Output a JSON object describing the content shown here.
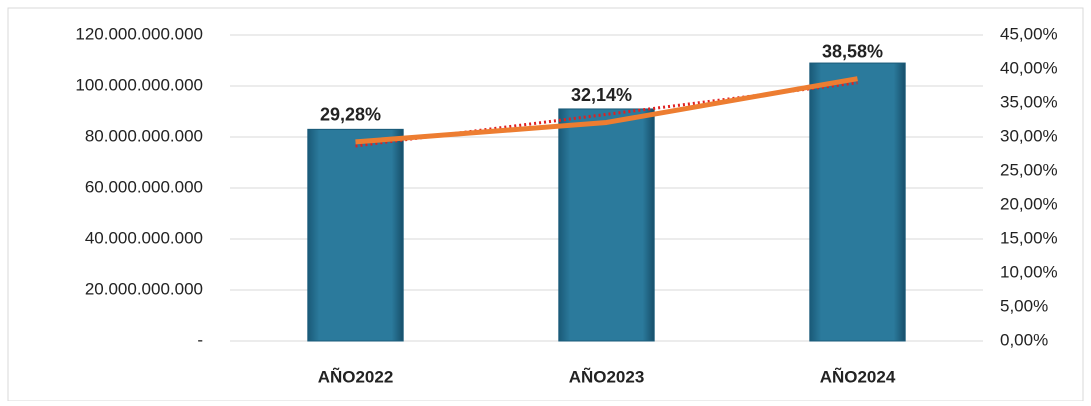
{
  "chart_data": {
    "type": "bar-line",
    "categories": [
      "AÑO2022",
      "AÑO2023",
      "AÑO2024"
    ],
    "series": [
      {
        "type": "bar",
        "color": "#2b7a9c",
        "values": [
          83000000000,
          91000000000,
          109000000000
        ]
      },
      {
        "type": "line",
        "axis": "y2",
        "color": "#ed7d31",
        "values": [
          29.28,
          32.14,
          38.58
        ],
        "value_labels": [
          "29,28%",
          "32,14%",
          "38,58%"
        ],
        "trendline": {
          "color": "#e02020",
          "style": "dotted"
        }
      }
    ],
    "ylim": [
      0,
      120000000000
    ],
    "yticks": [
      {
        "value": 0,
        "label": "-"
      },
      {
        "value": 20000000000,
        "label": "20.000.000.000"
      },
      {
        "value": 40000000000,
        "label": "40.000.000.000"
      },
      {
        "value": 60000000000,
        "label": "60.000.000.000"
      },
      {
        "value": 80000000000,
        "label": "80.000.000.000"
      },
      {
        "value": 100000000000,
        "label": "100.000.000.000"
      },
      {
        "value": 120000000000,
        "label": "120.000.000.000"
      }
    ],
    "y2lim": [
      0,
      45
    ],
    "y2ticks": [
      {
        "value": 0,
        "label": "0,00%"
      },
      {
        "value": 5,
        "label": "5,00%"
      },
      {
        "value": 10,
        "label": "10,00%"
      },
      {
        "value": 15,
        "label": "15,00%"
      },
      {
        "value": 20,
        "label": "20,00%"
      },
      {
        "value": 25,
        "label": "25,00%"
      },
      {
        "value": 30,
        "label": "30,00%"
      },
      {
        "value": 35,
        "label": "35,00%"
      },
      {
        "value": 40,
        "label": "40,00%"
      },
      {
        "value": 45,
        "label": "45,00%"
      }
    ],
    "grid": true
  }
}
